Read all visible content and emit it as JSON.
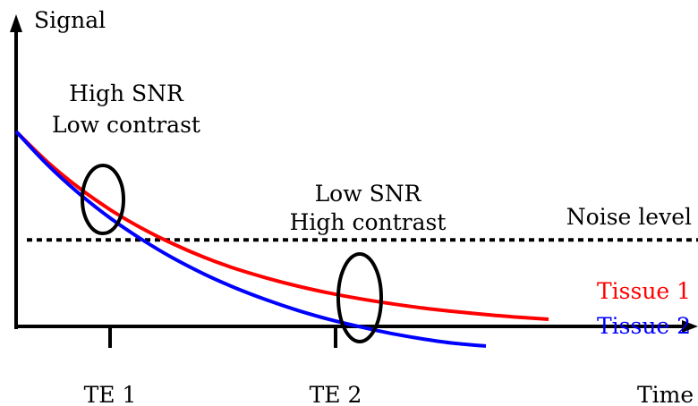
{
  "chart_data": {
    "type": "line",
    "title": "",
    "xlabel": "Time",
    "ylabel": "Signal",
    "xlim": [
      0,
      100
    ],
    "ylim": [
      0,
      100
    ],
    "x_ticks": [
      {
        "label": "TE 1",
        "value": 15
      },
      {
        "label": "TE 2",
        "value": 51
      }
    ],
    "series": [
      {
        "name": "Tissue 1",
        "color": "#ff0000",
        "x": [
          0,
          5,
          10,
          15,
          20,
          25,
          30,
          35,
          40,
          45,
          50,
          55,
          60,
          65,
          70,
          75,
          80,
          85
        ],
        "y": [
          100,
          85.8,
          73.8,
          63.6,
          55.0,
          47.7,
          41.4,
          36.1,
          31.7,
          27.9,
          24.7,
          22.0,
          19.7,
          17.7,
          16.1,
          14.7,
          13.5,
          12.5
        ]
      },
      {
        "name": "Tissue 2",
        "color": "#0000ff",
        "x": [
          0,
          5,
          10,
          15,
          20,
          25,
          30,
          35,
          40,
          45,
          50,
          55,
          60,
          65,
          70,
          75
        ],
        "y": [
          100,
          84.5,
          71.2,
          59.7,
          49.8,
          41.1,
          33.6,
          27.1,
          21.5,
          16.6,
          12.4,
          8.9,
          5.8,
          3.3,
          1.3,
          0
        ]
      }
    ],
    "reference_lines": [
      {
        "label": "Noise level",
        "y": 49.5,
        "style": "dotted",
        "color": "#000000"
      }
    ],
    "annotations": [
      {
        "lines": [
          "High SNR",
          "Low contrast"
        ],
        "x": 15,
        "highlight": "ellipse"
      },
      {
        "lines": [
          "Low SNR",
          "High contrast"
        ],
        "x": 51,
        "highlight": "ellipse"
      }
    ],
    "grid": false,
    "legend": "right, inline labels at line ends"
  }
}
